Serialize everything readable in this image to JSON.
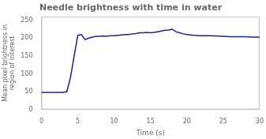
{
  "chart_data": {
    "type": "line",
    "title": "Needle brightness with time in water",
    "xlabel": "Time (s)",
    "ylabel": "Mean pixel brightness in\nregion of interest",
    "x": [
      0,
      1,
      2,
      3,
      3.5,
      4,
      4.5,
      5,
      5.5,
      6,
      6.5,
      7,
      7.5,
      8,
      8.5,
      9,
      9.5,
      10,
      10.5,
      11,
      11.5,
      12,
      12.5,
      13,
      13.5,
      14,
      14.5,
      15,
      15.5,
      16,
      16.5,
      17,
      17.5,
      18,
      18.5,
      19,
      19.5,
      20,
      21,
      22,
      23,
      24,
      25,
      26,
      27,
      28,
      29,
      30
    ],
    "values": [
      48,
      48,
      48,
      48,
      50,
      90,
      150,
      208,
      210,
      196,
      200,
      203,
      205,
      205,
      206,
      205,
      207,
      207,
      208,
      209,
      210,
      210,
      212,
      213,
      215,
      215,
      216,
      215,
      216,
      218,
      220,
      222,
      223,
      225,
      218,
      215,
      212,
      210,
      208,
      207,
      207,
      206,
      205,
      204,
      204,
      204,
      203,
      203
    ],
    "color": "#1a237e",
    "xlim": [
      0,
      30
    ],
    "xticks": [
      0,
      5,
      10,
      15,
      20,
      25,
      30
    ],
    "ylim": [
      0,
      260
    ],
    "yticks": [
      0,
      50,
      100,
      150,
      200,
      250
    ],
    "grid": false
  }
}
